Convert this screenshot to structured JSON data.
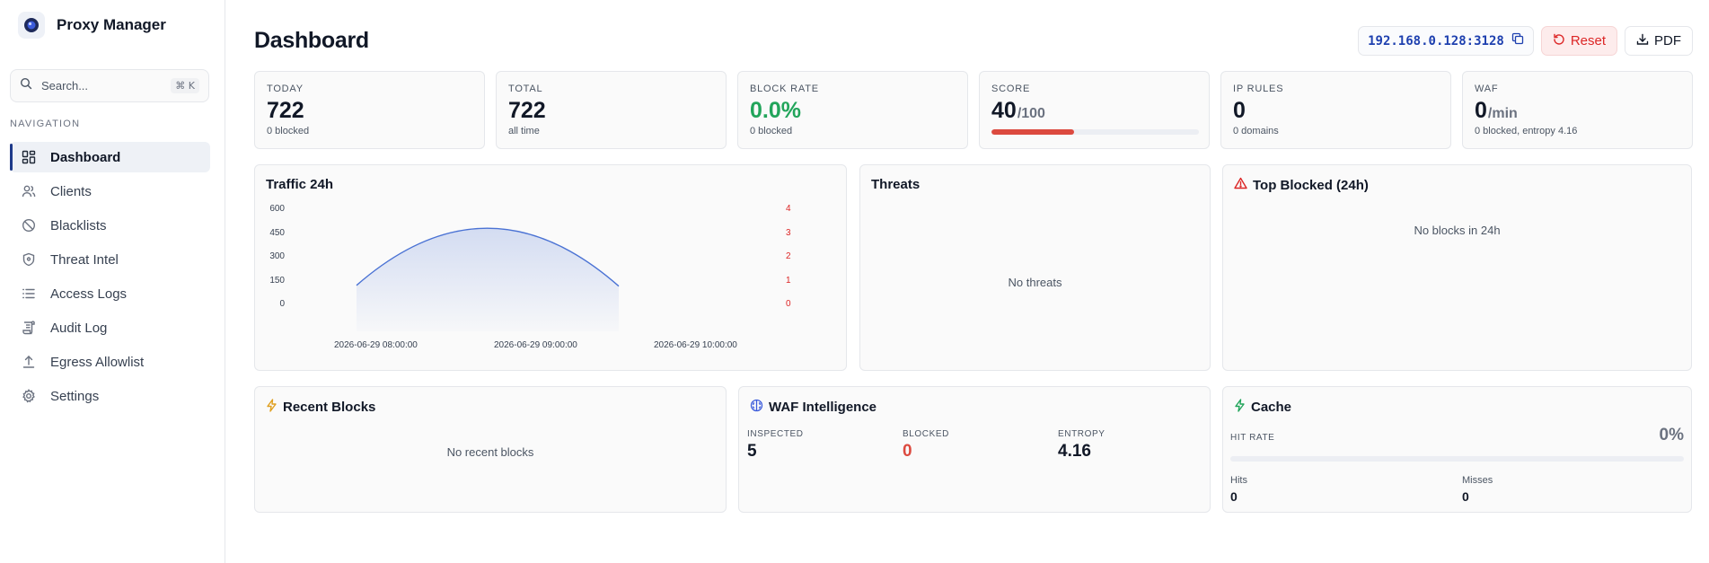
{
  "brand": {
    "title": "Proxy Manager"
  },
  "search": {
    "placeholder": "Search...",
    "shortcut": "⌘ K"
  },
  "nav": {
    "heading": "NAVIGATION",
    "items": [
      {
        "label": "Dashboard",
        "icon": "dashboard-icon",
        "active": true
      },
      {
        "label": "Clients",
        "icon": "users-icon"
      },
      {
        "label": "Blacklists",
        "icon": "ban-icon"
      },
      {
        "label": "Threat Intel",
        "icon": "shield-icon"
      },
      {
        "label": "Access Logs",
        "icon": "list-icon"
      },
      {
        "label": "Audit Log",
        "icon": "scroll-icon"
      },
      {
        "label": "Egress Allowlist",
        "icon": "upload-icon"
      },
      {
        "label": "Settings",
        "icon": "gear-icon"
      }
    ]
  },
  "header": {
    "title": "Dashboard",
    "address": "192.168.0.128:3128",
    "reset_label": "Reset",
    "pdf_label": "PDF"
  },
  "stats": {
    "today": {
      "label": "TODAY",
      "value": "722",
      "sub": "0 blocked"
    },
    "total": {
      "label": "TOTAL",
      "value": "722",
      "sub": "all time"
    },
    "block_rate": {
      "label": "BLOCK RATE",
      "value": "0.0%",
      "sub": "0 blocked",
      "color": "#22a55b"
    },
    "score": {
      "label": "SCORE",
      "value": "40",
      "unit": "/100",
      "progress": 0.4,
      "color": "#dc4a3f"
    },
    "ip_rules": {
      "label": "IP RULES",
      "value": "0",
      "sub": "0 domains"
    },
    "waf": {
      "label": "WAF",
      "value": "0",
      "unit": "/min",
      "sub": "0 blocked, entropy 4.16"
    }
  },
  "traffic": {
    "title": "Traffic 24h",
    "chart_data": {
      "type": "area",
      "x": [
        "2026-06-29 08:00:00",
        "2026-06-29 09:00:00",
        "2026-06-29 10:00:00"
      ],
      "series": [
        {
          "values": [
            120,
            480,
            115
          ]
        }
      ],
      "ylim": [
        0,
        600
      ],
      "yticks": [
        "0",
        "150",
        "300",
        "450",
        "600"
      ],
      "y2lim": [
        0,
        4
      ],
      "y2ticks": [
        "0",
        "1",
        "2",
        "3",
        "4"
      ],
      "y2color": "#dc2626",
      "grid": false
    }
  },
  "threats": {
    "title": "Threats",
    "empty": "No threats"
  },
  "top_blocked": {
    "title": "Top Blocked (24h)",
    "empty": "No blocks in 24h"
  },
  "recent_blocks": {
    "title": "Recent Blocks",
    "empty": "No recent blocks"
  },
  "waf_intel": {
    "title": "WAF Intelligence",
    "inspected": {
      "label": "INSPECTED",
      "value": "5"
    },
    "blocked": {
      "label": "BLOCKED",
      "value": "0"
    },
    "entropy": {
      "label": "ENTROPY",
      "value": "4.16"
    }
  },
  "cache": {
    "title": "Cache",
    "hit_rate_label": "HIT RATE",
    "hit_rate": "0%",
    "hit_progress": 0,
    "hits_label": "Hits",
    "hits": "0",
    "misses_label": "Misses",
    "misses": "0"
  }
}
